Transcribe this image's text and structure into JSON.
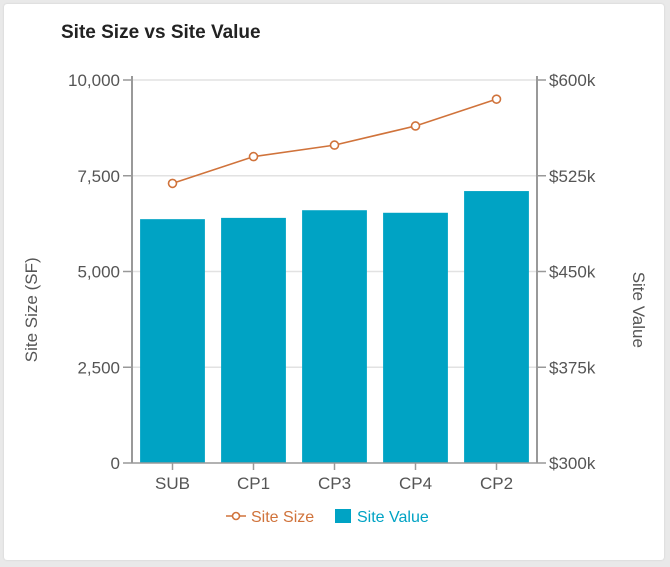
{
  "chart_data": {
    "type": "bar+line",
    "title": "Site Size vs Site Value",
    "categories": [
      "SUB",
      "CP1",
      "CP3",
      "CP4",
      "CP2"
    ],
    "series": [
      {
        "name": "Site Size",
        "type": "line",
        "axis": "left",
        "values": [
          7300,
          8000,
          8300,
          8800,
          9500
        ],
        "color": "#d0733b"
      },
      {
        "name": "Site Value",
        "type": "bar",
        "axis": "right",
        "values": [
          491000,
          492000,
          498000,
          496000,
          513000
        ],
        "color": "#00a3c4"
      }
    ],
    "y_left": {
      "label": "Site Size (SF)",
      "range": [
        0,
        10000
      ],
      "ticks": [
        0,
        2500,
        5000,
        7500,
        10000
      ],
      "tick_labels": [
        "0",
        "2,500",
        "5,000",
        "7,500",
        "10,000"
      ]
    },
    "y_right": {
      "label": "Site Value",
      "range": [
        300000,
        600000
      ],
      "ticks": [
        300000,
        375000,
        450000,
        525000,
        600000
      ],
      "tick_labels": [
        "$300k",
        "$375k",
        "$450k",
        "$525k",
        "$600k"
      ]
    },
    "legend_position": "bottom-center",
    "grid": true
  }
}
